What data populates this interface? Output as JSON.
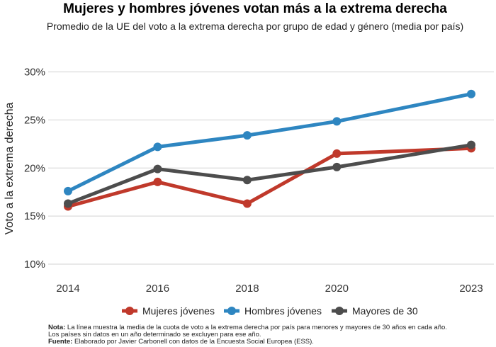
{
  "chart_data": {
    "type": "line",
    "title": "Mujeres y hombres jóvenes votan más a la extrema derecha",
    "subtitle": "Promedio de la UE del voto a la extrema derecha por grupo de edad y género (media por país)",
    "xlabel": "",
    "ylabel": "Voto a la extrema derecha",
    "x": [
      2014,
      2016,
      2018,
      2020,
      2023
    ],
    "x_ticks": [
      "2014",
      "2016",
      "2018",
      "2020",
      "2023"
    ],
    "y_ticks": [
      "10%",
      "15%",
      "20%",
      "25%",
      "30%"
    ],
    "y_tick_values": [
      10,
      15,
      20,
      25,
      30
    ],
    "ylim": [
      10,
      30
    ],
    "grid": "horizontal",
    "legend": "bottom",
    "series": [
      {
        "name": "Mujeres jóvenes",
        "color": "#c0392b",
        "values": [
          16.0,
          18.55,
          16.3,
          21.5,
          22.05
        ]
      },
      {
        "name": "Hombres jóvenes",
        "color": "#2e86c1",
        "values": [
          17.6,
          22.2,
          23.4,
          24.85,
          27.7
        ]
      },
      {
        "name": "Mayores de 30",
        "color": "#4d4d4d",
        "values": [
          16.3,
          19.9,
          18.75,
          20.1,
          22.4
        ]
      }
    ],
    "notes": {
      "nota_label": "Nota:",
      "nota_line1": " La línea muestra la media de la cuota de voto a la extrema derecha por país para menores y mayores de 30 años en cada año.",
      "nota_line2": "Los países sin datos en un año determinado se excluyen para ese año.",
      "fuente_label": "Fuente:",
      "fuente_text": " Elaborado por Javier Carbonell con datos de la Encuesta Social Europea (ESS)."
    }
  }
}
